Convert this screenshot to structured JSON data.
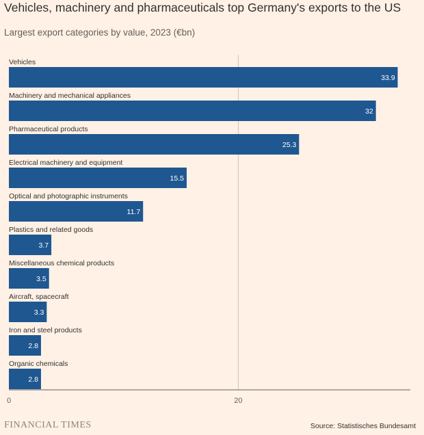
{
  "chart_data": {
    "type": "bar",
    "orientation": "horizontal",
    "title": "Vehicles, machinery and pharmaceuticals top Germany's exports to the US",
    "subtitle": "Largest export categories by value, 2023 (€bn)",
    "categories": [
      "Vehicles",
      "Machinery and mechanical appliances",
      "Pharmaceutical products",
      "Electrical machinery and equipment",
      "Optical and photographic instruments",
      "Plastics and related goods",
      "Miscellaneous chemical products",
      "Aircraft, spacecraft",
      "Iron and steel products",
      "Organic chemicals"
    ],
    "values": [
      33.9,
      32,
      25.3,
      15.5,
      11.7,
      3.7,
      3.5,
      3.3,
      2.8,
      2.8
    ],
    "value_labels": [
      "33.9",
      "32",
      "25.3",
      "15.5",
      "11.7",
      "3.7",
      "3.5",
      "3.3",
      "2.8",
      "2.8"
    ],
    "xlim": [
      0,
      35
    ],
    "xticks": [
      0,
      20
    ],
    "xtick_labels": [
      "0",
      "20"
    ],
    "xlabel": "",
    "ylabel": "",
    "grid": true
  },
  "footer": {
    "brand": "FINANCIAL TIMES",
    "source": "Source: Statistisches Bundesamt"
  },
  "colors": {
    "background": "#fff1e5",
    "bar": "#1f5791",
    "gridline": "#ccc1b7",
    "axis": "#66605c"
  }
}
